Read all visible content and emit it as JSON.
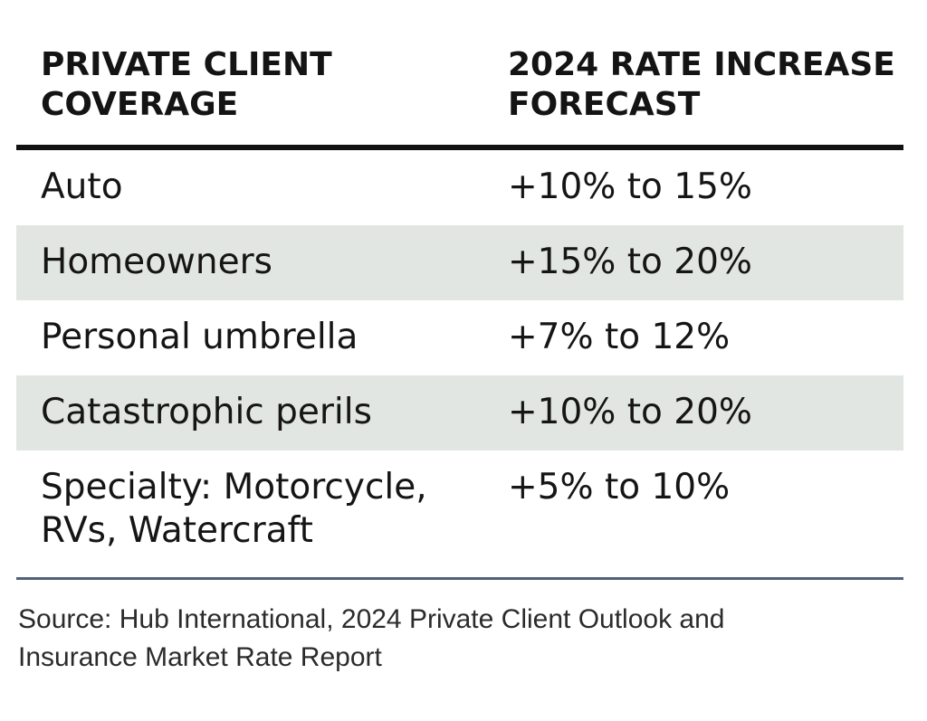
{
  "table": {
    "headers": {
      "coverage_line1": "PRIVATE CLIENT",
      "coverage_line2": "COVERAGE",
      "forecast_line1": "2024 RATE INCREASE",
      "forecast_line2": "FORECAST"
    },
    "rows": [
      {
        "coverage": "Auto",
        "forecast": "+10% to 15%",
        "shaded": false
      },
      {
        "coverage": "Homeowners",
        "forecast": "+15% to 20%",
        "shaded": true
      },
      {
        "coverage": "Personal umbrella",
        "forecast": "+7% to 12%",
        "shaded": false
      },
      {
        "coverage": "Catastrophic perils",
        "forecast": "+10% to 20%",
        "shaded": true
      },
      {
        "coverage_line1": "Specialty: Motorcycle,",
        "coverage_line2": "RVs, Watercraft",
        "forecast": "+5% to 10%",
        "shaded": false
      }
    ]
  },
  "source": {
    "line1": "Source: Hub International, 2024 Private Client Outlook and",
    "line2": "Insurance Market Rate Report"
  },
  "colors": {
    "shaded_row": "#e2e6e2",
    "header_rule": "#111111",
    "bottom_rule": "#50627a"
  }
}
